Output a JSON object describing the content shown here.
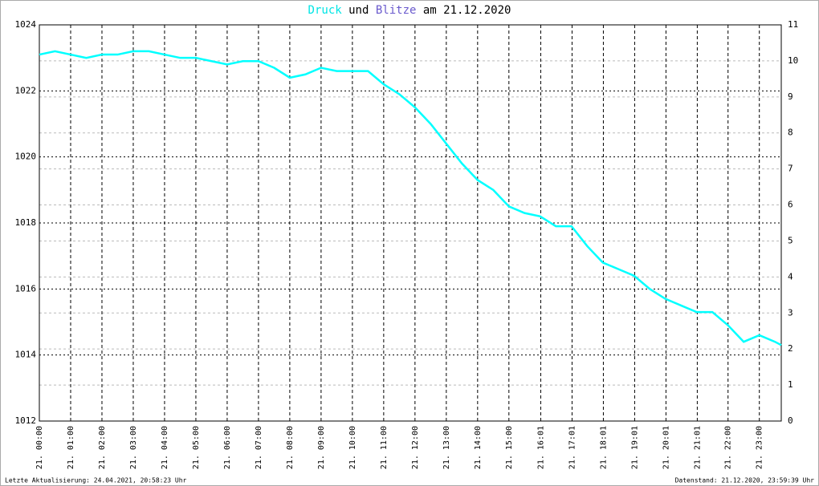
{
  "chart_data": {
    "type": "line",
    "title_parts": [
      {
        "text": "Druck",
        "color": "#00e5e5"
      },
      {
        "text": "und",
        "color": "#000000"
      },
      {
        "text": "Blitze",
        "color": "#6a5acd"
      },
      {
        "text": "am 21.12.2020",
        "color": "#000000"
      }
    ],
    "x": [
      0,
      0.5,
      1,
      1.5,
      2,
      2.5,
      3,
      3.5,
      4,
      4.5,
      5,
      5.5,
      6,
      6.5,
      7,
      7.5,
      8,
      8.5,
      9,
      9.5,
      10,
      10.5,
      11,
      11.5,
      12,
      12.5,
      13,
      13.5,
      14,
      14.5,
      15,
      15.5,
      16,
      16.5,
      17,
      17.5,
      18,
      18.5,
      19,
      19.5,
      20,
      20.5,
      21,
      21.5,
      22,
      22.5,
      23,
      23.5,
      23.7
    ],
    "series": [
      {
        "name": "Druck",
        "color": "#00ffff",
        "values": [
          1023.1,
          1023.2,
          1023.1,
          1023.0,
          1023.1,
          1023.1,
          1023.2,
          1023.2,
          1023.1,
          1023.0,
          1023.0,
          1022.9,
          1022.8,
          1022.9,
          1022.9,
          1022.7,
          1022.4,
          1022.5,
          1022.7,
          1022.6,
          1022.6,
          1022.6,
          1022.2,
          1021.9,
          1021.5,
          1021.0,
          1020.4,
          1019.8,
          1019.3,
          1019.0,
          1018.5,
          1018.3,
          1018.2,
          1017.9,
          1017.9,
          1017.3,
          1016.8,
          1016.6,
          1016.4,
          1016.0,
          1015.7,
          1015.5,
          1015.3,
          1015.3,
          1014.9,
          1014.4,
          1014.6,
          1014.4,
          1014.3
        ]
      }
    ],
    "xlim": [
      0,
      23.7
    ],
    "xticks": [
      {
        "value": 0,
        "label": "21. 00:00"
      },
      {
        "value": 1,
        "label": "21. 01:00"
      },
      {
        "value": 2,
        "label": "21. 02:00"
      },
      {
        "value": 3,
        "label": "21. 03:00"
      },
      {
        "value": 4,
        "label": "21. 04:00"
      },
      {
        "value": 5,
        "label": "21. 05:00"
      },
      {
        "value": 6,
        "label": "21. 06:00"
      },
      {
        "value": 7,
        "label": "21. 07:00"
      },
      {
        "value": 8,
        "label": "21. 08:00"
      },
      {
        "value": 9,
        "label": "21. 09:00"
      },
      {
        "value": 10,
        "label": "21. 10:00"
      },
      {
        "value": 11,
        "label": "21. 11:00"
      },
      {
        "value": 12,
        "label": "21. 12:00"
      },
      {
        "value": 13,
        "label": "21. 13:00"
      },
      {
        "value": 14,
        "label": "21. 14:00"
      },
      {
        "value": 15,
        "label": "21. 15:00"
      },
      {
        "value": 16.017,
        "label": "21. 16:01"
      },
      {
        "value": 17.017,
        "label": "21. 17:01"
      },
      {
        "value": 18.017,
        "label": "21. 18:01"
      },
      {
        "value": 19.017,
        "label": "21. 19:01"
      },
      {
        "value": 20.017,
        "label": "21. 20:01"
      },
      {
        "value": 21.017,
        "label": "21. 21:01"
      },
      {
        "value": 22,
        "label": "21. 22:00"
      },
      {
        "value": 23,
        "label": "21. 23:00"
      }
    ],
    "ylim": [
      1012,
      1024
    ],
    "yticks": [
      1012,
      1014,
      1016,
      1018,
      1020,
      1022,
      1024
    ],
    "y2lim": [
      0,
      11
    ],
    "y2ticks": [
      0,
      1,
      2,
      3,
      4,
      5,
      6,
      7,
      8,
      9,
      10,
      11
    ],
    "grid": true
  },
  "footer": {
    "left": "Letzte Aktualisierung: 24.04.2021, 20:58:23 Uhr",
    "right": "Datenstand: 21.12.2020, 23:59:39 Uhr"
  }
}
